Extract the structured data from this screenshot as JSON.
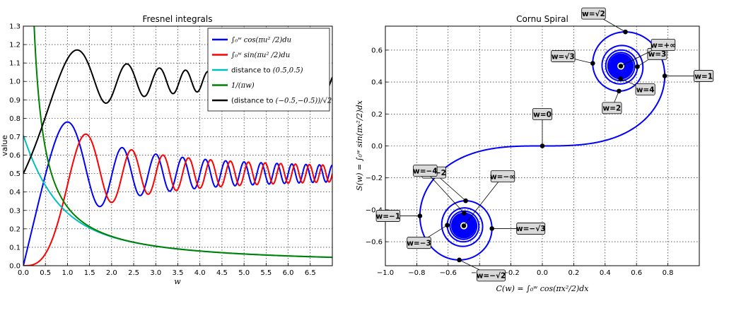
{
  "chart_data": [
    {
      "type": "line",
      "title": "Fresnel integrals",
      "xlabel": "w",
      "ylabel": "value",
      "xlim": [
        0.0,
        7.0
      ],
      "ylim": [
        0.0,
        1.3
      ],
      "xticks": [
        "0.0",
        "0.5",
        "1.0",
        "1.5",
        "2.0",
        "2.5",
        "3.0",
        "3.5",
        "4.0",
        "4.5",
        "5.0",
        "5.5",
        "6.0",
        "6.5"
      ],
      "yticks": [
        "0.0",
        "0.1",
        "0.2",
        "0.3",
        "0.4",
        "0.5",
        "0.6",
        "0.7",
        "0.8",
        "0.9",
        "1.0",
        "1.1",
        "1.2",
        "1.3"
      ],
      "grid": true,
      "legend_position": "top-right",
      "series": [
        {
          "name": "∫₀ʷ cos(πu²/2)du",
          "color": "#0000ff",
          "function": "C(w)"
        },
        {
          "name": "∫₀ʷ sin(πu²/2)du",
          "color": "#ff0000",
          "function": "S(w)"
        },
        {
          "name": "distance to (0.5,0.5)",
          "color": "#00bfbf",
          "function": "sqrt((C-0.5)^2+(S-0.5)^2)"
        },
        {
          "name": "1/(πw)",
          "color": "#008000",
          "function": "1/(pi*w)"
        },
        {
          "name": "(distance to (−0.5,−0.5))/√2",
          "color": "#000000",
          "function": "sqrt((C+0.5)^2+(S+0.5)^2)/sqrt(2)"
        }
      ],
      "legend_labels": [
        {
          "prefix": "",
          "math": "∫₀ʷ cos(πu² /2)du"
        },
        {
          "prefix": "",
          "math": "∫₀ʷ sin(πu² /2)du"
        },
        {
          "prefix": "distance to ",
          "math": "(0.5,0.5)"
        },
        {
          "prefix": "",
          "math": "1/(πw)"
        },
        {
          "prefix": "(distance to ",
          "math": "(−0.5,−0.5))/√2"
        }
      ]
    },
    {
      "type": "line",
      "title": "Cornu Spiral",
      "xlabel": "C(w) = ∫₀ʷ cos(πx²/2)dx",
      "ylabel": "S(w) = ∫₀ʷ sin(πx²/2)dx",
      "xlim": [
        -1.0,
        1.0
      ],
      "ylim": [
        -0.75,
        0.75
      ],
      "xticks": [
        "−1.0",
        "−0.8",
        "−0.6",
        "−0.4",
        "−0.2",
        "0.0",
        "0.2",
        "0.4",
        "0.6",
        "0.8"
      ],
      "yticks": [
        "−0.6",
        "−0.4",
        "−0.2",
        "0.0",
        "0.2",
        "0.4",
        "0.6"
      ],
      "grid": true,
      "series": [
        {
          "name": "",
          "color": "#0000ff",
          "w_range": [
            -12,
            12
          ]
        }
      ],
      "annotations": [
        {
          "label": "w=0",
          "w": 0
        },
        {
          "label": "w=1",
          "w": 1
        },
        {
          "label": "w=2",
          "w": 2
        },
        {
          "label": "w=3",
          "w": 3
        },
        {
          "label": "w=4",
          "w": 4
        },
        {
          "label": "w=√2",
          "w": 1.4142
        },
        {
          "label": "w=√3",
          "w": 1.7321
        },
        {
          "label": "w=+∞",
          "w": "+inf"
        },
        {
          "label": "w=−1",
          "w": -1
        },
        {
          "label": "w=−2",
          "w": -2
        },
        {
          "label": "w=−3",
          "w": -3
        },
        {
          "label": "w=−4",
          "w": -4
        },
        {
          "label": "w=−√2",
          "w": -1.4142
        },
        {
          "label": "w=−√3",
          "w": -1.7321
        },
        {
          "label": "w=−∞",
          "w": "-inf"
        }
      ]
    }
  ]
}
